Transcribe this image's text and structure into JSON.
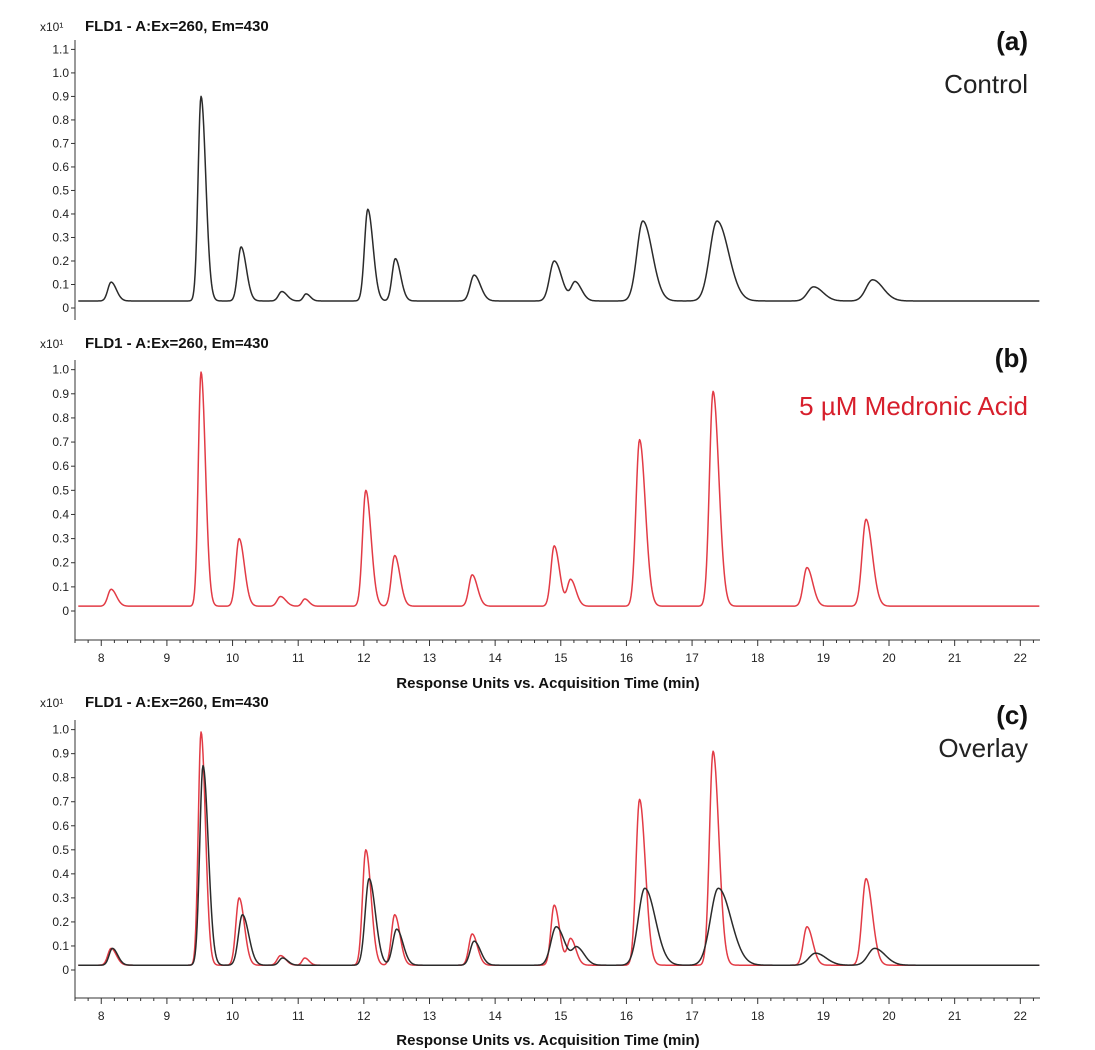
{
  "figure": {
    "x_axis_label": "Response Units vs. Acquisition Time (min)"
  },
  "chart_data": [
    {
      "type": "line",
      "panel": "(a)",
      "title": "FLD1 - A:Ex=260, Em=430",
      "scale_label": "x10¹",
      "condition_label": "Control",
      "condition_color": "#222222",
      "xlim": [
        7.6,
        22.3
      ],
      "ylim": [
        -0.05,
        1.14
      ],
      "yticks": [
        0,
        0.1,
        0.2,
        0.3,
        0.4,
        0.5,
        0.6,
        0.7,
        0.8,
        0.9,
        1.0,
        1.1
      ],
      "ytick_labels": [
        "0",
        "0.1",
        "0.2",
        "0.3",
        "0.4",
        "0.5",
        "0.6",
        "0.7",
        "0.8",
        "0.9",
        "1.0",
        "1.1"
      ],
      "xticks": [],
      "xtick_labels": [],
      "show_xlabel": false,
      "series": [
        {
          "color": "#2b2b2b",
          "baseline": 0.03,
          "peaks": [
            {
              "t": 8.15,
              "h": 0.08,
              "w": 0.05
            },
            {
              "t": 9.52,
              "h": 0.87,
              "w": 0.045
            },
            {
              "t": 10.13,
              "h": 0.23,
              "w": 0.05
            },
            {
              "t": 10.75,
              "h": 0.04,
              "w": 0.05
            },
            {
              "t": 11.12,
              "h": 0.03,
              "w": 0.04
            },
            {
              "t": 12.06,
              "h": 0.39,
              "w": 0.05
            },
            {
              "t": 12.48,
              "h": 0.18,
              "w": 0.05
            },
            {
              "t": 13.68,
              "h": 0.11,
              "w": 0.06
            },
            {
              "t": 14.9,
              "h": 0.17,
              "w": 0.07
            },
            {
              "t": 15.22,
              "h": 0.08,
              "w": 0.06
            },
            {
              "t": 16.25,
              "h": 0.34,
              "w": 0.09
            },
            {
              "t": 17.38,
              "h": 0.34,
              "w": 0.11
            },
            {
              "t": 18.85,
              "h": 0.06,
              "w": 0.09
            },
            {
              "t": 19.75,
              "h": 0.09,
              "w": 0.1
            }
          ]
        }
      ]
    },
    {
      "type": "line",
      "panel": "(b)",
      "title": "FLD1 - A:Ex=260, Em=430",
      "scale_label": "x10¹",
      "condition_label": "5 µM Medronic Acid",
      "condition_color": "#d71f2c",
      "xlim": [
        7.6,
        22.3
      ],
      "ylim": [
        -0.05,
        1.04
      ],
      "yticks": [
        0,
        0.1,
        0.2,
        0.3,
        0.4,
        0.5,
        0.6,
        0.7,
        0.8,
        0.9,
        1.0
      ],
      "ytick_labels": [
        "0",
        "0.1",
        "0.2",
        "0.3",
        "0.4",
        "0.5",
        "0.6",
        "0.7",
        "0.8",
        "0.9",
        "1.0"
      ],
      "xticks": [
        8,
        9,
        10,
        11,
        12,
        13,
        14,
        15,
        16,
        17,
        18,
        19,
        20,
        21,
        22
      ],
      "xtick_labels": [
        "8",
        "9",
        "10",
        "11",
        "12",
        "13",
        "14",
        "15",
        "16",
        "17",
        "18",
        "19",
        "20",
        "21",
        "22"
      ],
      "show_xlabel": true,
      "series": [
        {
          "color": "#e23b45",
          "baseline": 0.02,
          "peaks": [
            {
              "t": 8.15,
              "h": 0.07,
              "w": 0.05
            },
            {
              "t": 9.52,
              "h": 0.97,
              "w": 0.042
            },
            {
              "t": 10.1,
              "h": 0.28,
              "w": 0.05
            },
            {
              "t": 10.73,
              "h": 0.04,
              "w": 0.05
            },
            {
              "t": 11.1,
              "h": 0.03,
              "w": 0.04
            },
            {
              "t": 12.03,
              "h": 0.48,
              "w": 0.05
            },
            {
              "t": 12.47,
              "h": 0.21,
              "w": 0.05
            },
            {
              "t": 13.65,
              "h": 0.13,
              "w": 0.05
            },
            {
              "t": 14.9,
              "h": 0.25,
              "w": 0.05
            },
            {
              "t": 15.15,
              "h": 0.11,
              "w": 0.05
            },
            {
              "t": 16.2,
              "h": 0.69,
              "w": 0.055
            },
            {
              "t": 17.32,
              "h": 0.89,
              "w": 0.055
            },
            {
              "t": 18.75,
              "h": 0.16,
              "w": 0.055
            },
            {
              "t": 19.65,
              "h": 0.36,
              "w": 0.06
            }
          ]
        }
      ]
    },
    {
      "type": "line",
      "panel": "(c)",
      "title": "FLD1 - A:Ex=260, Em=430",
      "scale_label": "x10¹",
      "condition_label": "Overlay",
      "condition_color": "#222222",
      "xlim": [
        7.6,
        22.3
      ],
      "ylim": [
        -0.12,
        1.04
      ],
      "yticks": [
        0,
        0.1,
        0.2,
        0.3,
        0.4,
        0.5,
        0.6,
        0.7,
        0.8,
        0.9,
        1.0
      ],
      "ytick_labels": [
        "0",
        "0.1",
        "0.2",
        "0.3",
        "0.4",
        "0.5",
        "0.6",
        "0.7",
        "0.8",
        "0.9",
        "1.0"
      ],
      "xticks": [
        8,
        9,
        10,
        11,
        12,
        13,
        14,
        15,
        16,
        17,
        18,
        19,
        20,
        21,
        22
      ],
      "xtick_labels": [
        "8",
        "9",
        "10",
        "11",
        "12",
        "13",
        "14",
        "15",
        "16",
        "17",
        "18",
        "19",
        "20",
        "21",
        "22"
      ],
      "show_xlabel": true,
      "series": [
        {
          "color": "#e23b45",
          "baseline": 0.02,
          "peaks": [
            {
              "t": 8.15,
              "h": 0.07,
              "w": 0.05
            },
            {
              "t": 9.52,
              "h": 0.97,
              "w": 0.042
            },
            {
              "t": 10.1,
              "h": 0.28,
              "w": 0.05
            },
            {
              "t": 10.73,
              "h": 0.04,
              "w": 0.05
            },
            {
              "t": 11.1,
              "h": 0.03,
              "w": 0.04
            },
            {
              "t": 12.03,
              "h": 0.48,
              "w": 0.05
            },
            {
              "t": 12.47,
              "h": 0.21,
              "w": 0.05
            },
            {
              "t": 13.65,
              "h": 0.13,
              "w": 0.05
            },
            {
              "t": 14.9,
              "h": 0.25,
              "w": 0.05
            },
            {
              "t": 15.15,
              "h": 0.11,
              "w": 0.05
            },
            {
              "t": 16.2,
              "h": 0.69,
              "w": 0.055
            },
            {
              "t": 17.32,
              "h": 0.89,
              "w": 0.055
            },
            {
              "t": 18.75,
              "h": 0.16,
              "w": 0.055
            },
            {
              "t": 19.65,
              "h": 0.36,
              "w": 0.06
            }
          ]
        },
        {
          "color": "#2b2b2b",
          "baseline": 0.02,
          "peaks": [
            {
              "t": 8.17,
              "h": 0.07,
              "w": 0.05
            },
            {
              "t": 9.55,
              "h": 0.83,
              "w": 0.05
            },
            {
              "t": 10.15,
              "h": 0.21,
              "w": 0.06
            },
            {
              "t": 10.76,
              "h": 0.03,
              "w": 0.05
            },
            {
              "t": 12.08,
              "h": 0.36,
              "w": 0.06
            },
            {
              "t": 12.5,
              "h": 0.15,
              "w": 0.06
            },
            {
              "t": 13.68,
              "h": 0.1,
              "w": 0.06
            },
            {
              "t": 14.93,
              "h": 0.16,
              "w": 0.08
            },
            {
              "t": 15.25,
              "h": 0.07,
              "w": 0.07
            },
            {
              "t": 16.28,
              "h": 0.32,
              "w": 0.1
            },
            {
              "t": 17.4,
              "h": 0.32,
              "w": 0.12
            },
            {
              "t": 18.88,
              "h": 0.05,
              "w": 0.1
            },
            {
              "t": 19.78,
              "h": 0.07,
              "w": 0.1
            }
          ]
        }
      ]
    }
  ]
}
